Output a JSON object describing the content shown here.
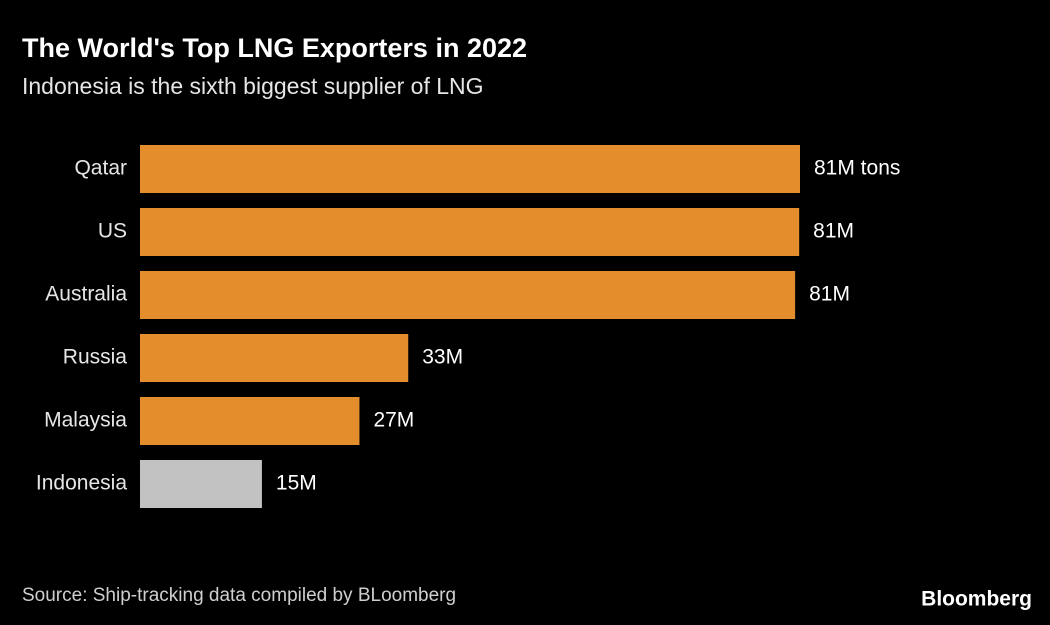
{
  "chart_data": {
    "type": "bar",
    "orientation": "horizontal",
    "title": "The World's Top LNG Exporters in 2022",
    "subtitle": "Indonesia is the sixth biggest supplier of LNG",
    "categories": [
      "Qatar",
      "US",
      "Australia",
      "Russia",
      "Malaysia",
      "Indonesia"
    ],
    "values": [
      81.2,
      81.1,
      80.6,
      33,
      27,
      15
    ],
    "value_labels": [
      "81M tons",
      "81M",
      "81M",
      "33M",
      "27M",
      "15M"
    ],
    "colors": [
      "#e38d2c",
      "#e38d2c",
      "#e38d2c",
      "#e38d2c",
      "#e38d2c",
      "#c2c2c2"
    ],
    "source": "Source: Ship-tracking data compiled by BLoomberg",
    "brand": "Bloomberg"
  }
}
